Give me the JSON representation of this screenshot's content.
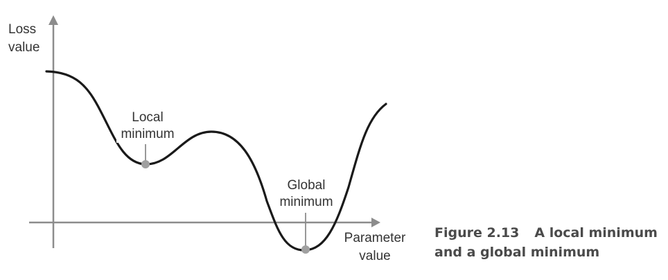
{
  "axes": {
    "y_label_line1": "Loss",
    "y_label_line2": "value",
    "x_label_line1": "Parameter",
    "x_label_line2": "value"
  },
  "annotations": {
    "local_line1": "Local",
    "local_line2": "minimum",
    "global_line1": "Global",
    "global_line2": "minimum"
  },
  "caption": {
    "number": "Figure 2.13",
    "text_line1": "A local minimum",
    "text_line2": "and a global minimum"
  },
  "colors": {
    "curve": "#1a1a1a",
    "axis": "#8c8c8c",
    "marker": "#a0a0a0",
    "caption": "#4a4a4a"
  }
}
